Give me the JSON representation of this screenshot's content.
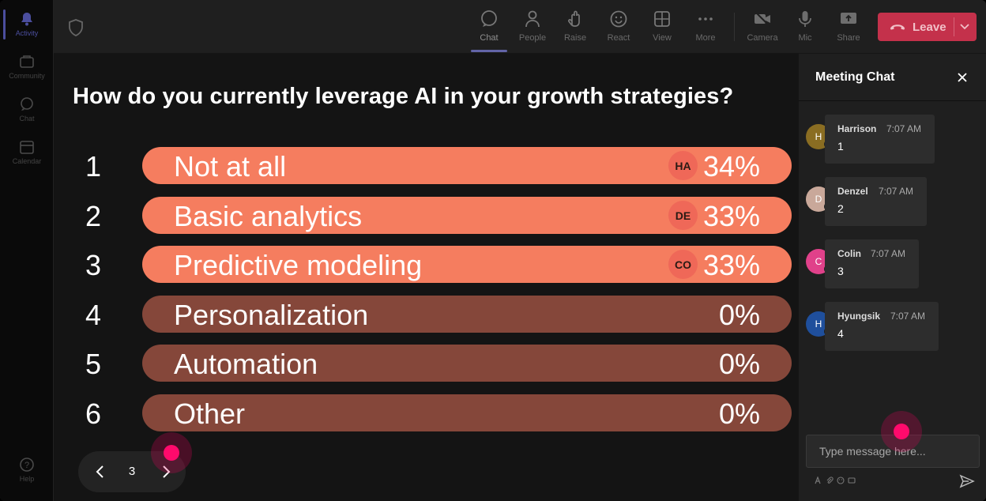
{
  "rail": {
    "items": [
      {
        "label": "Activity",
        "icon": "bell-icon"
      },
      {
        "label": "Community",
        "icon": "community-icon"
      },
      {
        "label": "Chat",
        "icon": "chat-icon"
      },
      {
        "label": "Calendar",
        "icon": "calendar-icon"
      }
    ],
    "help": {
      "label": "Help",
      "icon": "help-icon"
    }
  },
  "toolbar": {
    "chat": "Chat",
    "people": "People",
    "raise": "Raise",
    "react": "React",
    "view": "View",
    "more": "More",
    "camera": "Camera",
    "mic": "Mic",
    "share": "Share",
    "leave": "Leave"
  },
  "poll": {
    "question": "How do you currently leverage AI in your growth strategies?",
    "options": [
      {
        "num": "1",
        "label": "Not at all",
        "percent": "34%",
        "badge": "HA"
      },
      {
        "num": "2",
        "label": "Basic analytics",
        "percent": "33%",
        "badge": "DE"
      },
      {
        "num": "3",
        "label": "Predictive modeling",
        "percent": "33%",
        "badge": "CO"
      },
      {
        "num": "4",
        "label": "Personalization",
        "percent": "0%",
        "badge": ""
      },
      {
        "num": "5",
        "label": "Automation",
        "percent": "0%",
        "badge": ""
      },
      {
        "num": "6",
        "label": "Other",
        "percent": "0%",
        "badge": ""
      }
    ],
    "page": "3"
  },
  "chat": {
    "title": "Meeting Chat",
    "messages": [
      {
        "initial": "H",
        "name": "Harrison",
        "time": "7:07 AM",
        "text": "1",
        "color": "#8a6d22"
      },
      {
        "initial": "D",
        "name": "Denzel",
        "time": "7:07 AM",
        "text": "2",
        "color": "#c9a89a"
      },
      {
        "initial": "C",
        "name": "Colin",
        "time": "7:07 AM",
        "text": "3",
        "color": "#e0418a"
      },
      {
        "initial": "H",
        "name": "Hyungsik",
        "time": "7:07 AM",
        "text": "4",
        "color": "#1f4f9c"
      }
    ],
    "placeholder": "Type message here..."
  },
  "colors": {
    "accent": "#6264a7",
    "leave": "#c4314b",
    "bar_selected": "#f57d5f",
    "bar_unselected": "#85473a"
  }
}
